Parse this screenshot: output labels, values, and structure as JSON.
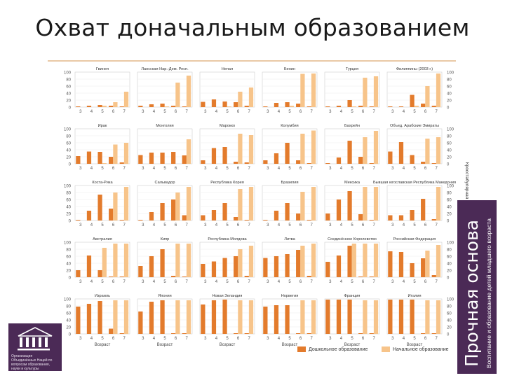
{
  "slide": {
    "title": "Охват доначальным образованием",
    "side_title": "Прочная основа",
    "side_subtitle": "Воспитание и образование детей младшего возраста",
    "logo_lines": [
      "Организация",
      "Объединённых Наций по",
      "вопросам образования,",
      "науки и культуры"
    ],
    "vertical_note": "Кросстабулярная",
    "colors": {
      "preprimary": "#e37b2c",
      "primary": "#f7c48a",
      "band": "#4b2a56",
      "rule": "#e9c9a6"
    }
  },
  "legend": {
    "preprimary": "Дошкольное образование",
    "primary": "Начальное образование"
  },
  "chart_data": {
    "type": "bar",
    "series_names": [
      "Дошкольное образование",
      "Начальное образование"
    ],
    "categories": [
      "3",
      "4",
      "5",
      "6",
      "7"
    ],
    "ylim": [
      0,
      100
    ],
    "yticks": [
      "100",
      "80",
      "60",
      "40",
      "20",
      "0"
    ],
    "xlabel": "Возраст",
    "panels": [
      {
        "title": "Гвинея",
        "preprimary": [
          2,
          4,
          6,
          4,
          2
        ],
        "primary": [
          0,
          0,
          4,
          14,
          44
        ]
      },
      {
        "title": "Лаосская Нар.-Дем. Респ.",
        "preprimary": [
          4,
          8,
          10,
          4,
          2
        ],
        "primary": [
          0,
          0,
          2,
          70,
          90
        ]
      },
      {
        "title": "Непал",
        "preprimary": [
          15,
          22,
          16,
          14,
          4
        ],
        "primary": [
          0,
          0,
          2,
          44,
          56
        ]
      },
      {
        "title": "Бенин",
        "preprimary": [
          2,
          12,
          14,
          10,
          2
        ],
        "primary": [
          0,
          0,
          4,
          95,
          96
        ]
      },
      {
        "title": "Турция",
        "preprimary": [
          2,
          4,
          20,
          4,
          2
        ],
        "primary": [
          0,
          0,
          2,
          84,
          88
        ]
      },
      {
        "title": "Филиппины (2003 г.)",
        "preprimary": [
          2,
          2,
          35,
          10,
          4
        ],
        "primary": [
          0,
          0,
          4,
          60,
          96
        ]
      },
      {
        "title": "Ирак",
        "preprimary": [
          22,
          35,
          34,
          20,
          4
        ],
        "primary": [
          0,
          0,
          2,
          55,
          60
        ]
      },
      {
        "title": "Монголия",
        "preprimary": [
          25,
          32,
          32,
          34,
          24
        ],
        "primary": [
          0,
          0,
          0,
          0,
          70
        ]
      },
      {
        "title": "Марокко",
        "preprimary": [
          10,
          45,
          48,
          6,
          4
        ],
        "primary": [
          0,
          0,
          0,
          86,
          82
        ]
      },
      {
        "title": "Колумбия",
        "preprimary": [
          10,
          30,
          60,
          10,
          2
        ],
        "primary": [
          0,
          0,
          0,
          86,
          95
        ]
      },
      {
        "title": "Бахрейн",
        "preprimary": [
          2,
          18,
          66,
          20,
          2
        ],
        "primary": [
          0,
          0,
          0,
          76,
          94
        ]
      },
      {
        "title": "Объед. Арабские Эмираты",
        "preprimary": [
          35,
          62,
          25,
          6,
          2
        ],
        "primary": [
          0,
          0,
          0,
          72,
          76
        ]
      },
      {
        "title": "Коста-Рика",
        "preprimary": [
          2,
          28,
          74,
          34,
          2
        ],
        "primary": [
          0,
          0,
          0,
          80,
          96
        ]
      },
      {
        "title": "Сальвадор",
        "preprimary": [
          2,
          24,
          50,
          60,
          15
        ],
        "primary": [
          0,
          0,
          0,
          80,
          96
        ]
      },
      {
        "title": "Республика Корея",
        "preprimary": [
          15,
          30,
          50,
          10,
          2
        ],
        "primary": [
          0,
          0,
          0,
          90,
          96
        ]
      },
      {
        "title": "Бразилия",
        "preprimary": [
          2,
          28,
          50,
          20,
          2
        ],
        "primary": [
          0,
          0,
          0,
          82,
          96
        ]
      },
      {
        "title": "Мексика",
        "preprimary": [
          20,
          60,
          84,
          18,
          2
        ],
        "primary": [
          0,
          0,
          0,
          96,
          96
        ]
      },
      {
        "title": "Бывшая югославская Республика Македония",
        "preprimary": [
          15,
          15,
          30,
          62,
          4
        ],
        "primary": [
          0,
          0,
          0,
          0,
          96
        ]
      },
      {
        "title": "Австралия",
        "preprimary": [
          20,
          62,
          20,
          2,
          2
        ],
        "primary": [
          0,
          0,
          84,
          96,
          96
        ]
      },
      {
        "title": "Кипр",
        "preprimary": [
          32,
          60,
          80,
          4,
          2
        ],
        "primary": [
          0,
          0,
          0,
          96,
          96
        ]
      },
      {
        "title": "Республика Молдова",
        "preprimary": [
          38,
          45,
          55,
          60,
          4
        ],
        "primary": [
          0,
          0,
          0,
          80,
          90
        ]
      },
      {
        "title": "Литва",
        "preprimary": [
          55,
          60,
          66,
          78,
          4
        ],
        "primary": [
          0,
          0,
          0,
          90,
          96
        ]
      },
      {
        "title": "Соединённое Королевство",
        "preprimary": [
          44,
          62,
          90,
          2,
          2
        ],
        "primary": [
          0,
          0,
          96,
          96,
          96
        ]
      },
      {
        "title": "Российская Федерация",
        "preprimary": [
          74,
          72,
          40,
          54,
          6
        ],
        "primary": [
          0,
          0,
          0,
          76,
          92
        ]
      },
      {
        "title": "Израиль",
        "preprimary": [
          78,
          86,
          94,
          15,
          2
        ],
        "primary": [
          0,
          0,
          0,
          96,
          96
        ]
      },
      {
        "title": "Япония",
        "preprimary": [
          64,
          92,
          96,
          2,
          2
        ],
        "primary": [
          0,
          0,
          0,
          96,
          96
        ]
      },
      {
        "title": "Новая Зеландия",
        "preprimary": [
          84,
          96,
          98,
          2,
          2
        ],
        "primary": [
          0,
          0,
          0,
          96,
          96
        ]
      },
      {
        "title": "Норвегия",
        "preprimary": [
          78,
          82,
          82,
          2,
          2
        ],
        "primary": [
          0,
          0,
          0,
          96,
          96
        ]
      },
      {
        "title": "Франция",
        "preprimary": [
          98,
          98,
          98,
          2,
          2
        ],
        "primary": [
          0,
          0,
          0,
          96,
          96
        ]
      },
      {
        "title": "Италия",
        "preprimary": [
          98,
          98,
          98,
          2,
          2
        ],
        "primary": [
          0,
          0,
          0,
          96,
          96
        ]
      }
    ]
  }
}
